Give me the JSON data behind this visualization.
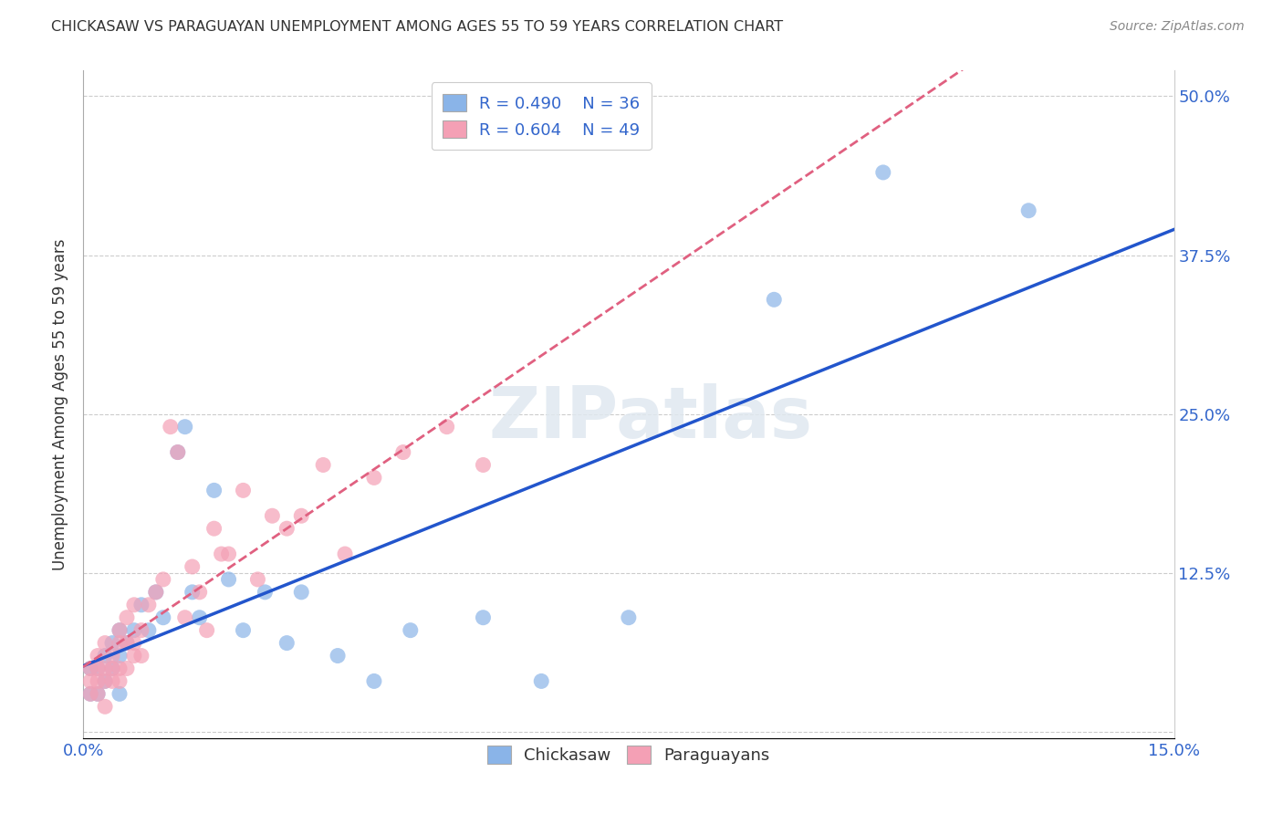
{
  "title": "CHICKASAW VS PARAGUAYAN UNEMPLOYMENT AMONG AGES 55 TO 59 YEARS CORRELATION CHART",
  "source": "Source: ZipAtlas.com",
  "ylabel": "Unemployment Among Ages 55 to 59 years",
  "xlim": [
    0.0,
    0.15
  ],
  "ylim": [
    -0.005,
    0.52
  ],
  "xticks": [
    0.0,
    0.05,
    0.1,
    0.15
  ],
  "yticks": [
    0.0,
    0.125,
    0.25,
    0.375,
    0.5
  ],
  "xticklabels": [
    "0.0%",
    "",
    "",
    "15.0%"
  ],
  "yticklabels": [
    "",
    "12.5%",
    "25.0%",
    "37.5%",
    "50.0%"
  ],
  "chickasaw_color": "#8ab4e8",
  "paraguayan_color": "#f4a0b5",
  "chickasaw_line_color": "#2255cc",
  "paraguayan_line_color": "#e06080",
  "legend_R_chickasaw": "R = 0.490",
  "legend_N_chickasaw": "N = 36",
  "legend_R_paraguayan": "R = 0.604",
  "legend_N_paraguayan": "N = 49",
  "watermark": "ZIPatlas",
  "chickasaw_x": [
    0.001,
    0.001,
    0.002,
    0.002,
    0.003,
    0.003,
    0.004,
    0.004,
    0.005,
    0.005,
    0.005,
    0.006,
    0.007,
    0.008,
    0.009,
    0.01,
    0.011,
    0.013,
    0.014,
    0.015,
    0.016,
    0.018,
    0.02,
    0.022,
    0.025,
    0.028,
    0.03,
    0.035,
    0.04,
    0.045,
    0.055,
    0.063,
    0.075,
    0.095,
    0.11,
    0.13
  ],
  "chickasaw_y": [
    0.03,
    0.05,
    0.03,
    0.05,
    0.04,
    0.06,
    0.05,
    0.07,
    0.03,
    0.06,
    0.08,
    0.07,
    0.08,
    0.1,
    0.08,
    0.11,
    0.09,
    0.22,
    0.24,
    0.11,
    0.09,
    0.19,
    0.12,
    0.08,
    0.11,
    0.07,
    0.11,
    0.06,
    0.04,
    0.08,
    0.09,
    0.04,
    0.09,
    0.34,
    0.44,
    0.41
  ],
  "paraguayan_x": [
    0.001,
    0.001,
    0.001,
    0.002,
    0.002,
    0.002,
    0.002,
    0.003,
    0.003,
    0.003,
    0.003,
    0.004,
    0.004,
    0.004,
    0.005,
    0.005,
    0.005,
    0.005,
    0.006,
    0.006,
    0.006,
    0.007,
    0.007,
    0.007,
    0.008,
    0.008,
    0.009,
    0.01,
    0.011,
    0.012,
    0.013,
    0.014,
    0.015,
    0.016,
    0.017,
    0.018,
    0.019,
    0.02,
    0.022,
    0.024,
    0.026,
    0.028,
    0.03,
    0.033,
    0.036,
    0.04,
    0.044,
    0.05,
    0.055
  ],
  "paraguayan_y": [
    0.03,
    0.04,
    0.05,
    0.03,
    0.04,
    0.05,
    0.06,
    0.02,
    0.04,
    0.05,
    0.07,
    0.04,
    0.05,
    0.06,
    0.04,
    0.05,
    0.07,
    0.08,
    0.05,
    0.07,
    0.09,
    0.06,
    0.07,
    0.1,
    0.06,
    0.08,
    0.1,
    0.11,
    0.12,
    0.24,
    0.22,
    0.09,
    0.13,
    0.11,
    0.08,
    0.16,
    0.14,
    0.14,
    0.19,
    0.12,
    0.17,
    0.16,
    0.17,
    0.21,
    0.14,
    0.2,
    0.22,
    0.24,
    0.21
  ]
}
